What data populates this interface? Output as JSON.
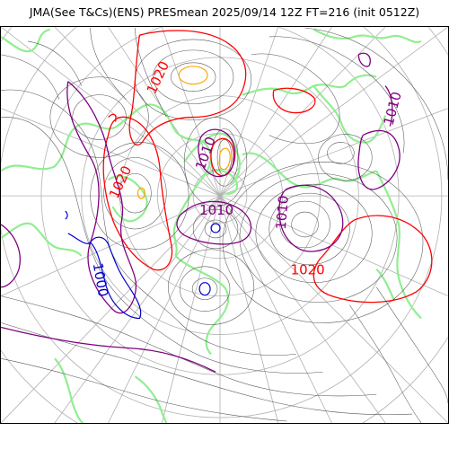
{
  "title": "JMA(See T&Cs)(ENS) PRESmean 2025/09/14 12Z FT=216 (init 0512Z)",
  "colors": {
    "coastline": "#90ee90",
    "graticule": "#b0b0b0",
    "isobar_minor": "#555555",
    "isobar_1020": "#ff0000",
    "isobar_1010": "#800080",
    "isobar_1000": "#0000cd",
    "isobar_high": "#ffa500"
  },
  "contour_labels": [
    {
      "text": "1020",
      "color": "isobar_1020"
    },
    {
      "text": "1020",
      "color": "isobar_1020"
    },
    {
      "text": "1010",
      "color": "isobar_1010"
    },
    {
      "text": "1010",
      "color": "isobar_1010"
    },
    {
      "text": "1010",
      "color": "isobar_1010"
    },
    {
      "text": "1010",
      "color": "isobar_1010"
    },
    {
      "text": "1020",
      "color": "isobar_1020"
    },
    {
      "text": "1000",
      "color": "isobar_1000"
    }
  ]
}
